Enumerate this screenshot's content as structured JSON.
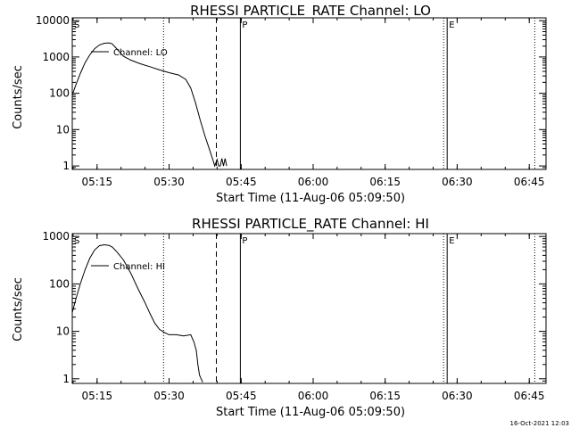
{
  "footer": {
    "timestamp": "16-Oct-2021 12:03"
  },
  "chart_data": [
    {
      "type": "line",
      "title": "RHESSI PARTICLE_RATE Channel: LO",
      "xlabel": "Start Time (11-Aug-06 05:09:50)",
      "ylabel": "Counts/sec",
      "y_scale": "log",
      "xlim": [
        "05:09:50",
        "06:48:30"
      ],
      "ylim": [
        0.8,
        12000
      ],
      "x_ticks": [
        "05:15",
        "05:30",
        "05:45",
        "06:00",
        "06:15",
        "06:30",
        "06:45"
      ],
      "y_ticks": [
        {
          "value": 1,
          "label": "1"
        },
        {
          "value": 10,
          "label": "10"
        },
        {
          "value": 100,
          "label": "100"
        },
        {
          "value": 1000,
          "label": "1000"
        },
        {
          "value": 10000,
          "label": "10000"
        }
      ],
      "legend": {
        "label": "Channel: LO",
        "placement": "top-left"
      },
      "markers": [
        {
          "time": "05:09:50",
          "label": "S",
          "style": "solid"
        },
        {
          "time": "05:28:50",
          "label": "",
          "style": "dotted"
        },
        {
          "time": "05:39:50",
          "label": "",
          "style": "dashed"
        },
        {
          "time": "05:44:50",
          "label": "P",
          "style": "solid"
        },
        {
          "time": "06:27:55",
          "label": "E",
          "style": "solid"
        },
        {
          "time": "06:27:10",
          "label": "",
          "style": "dotted"
        },
        {
          "time": "06:46:10",
          "label": "",
          "style": "dotted"
        }
      ],
      "series": [
        {
          "x": [
            "05:09:50",
            "05:10:30",
            "05:11:30",
            "05:12:30",
            "05:13:30",
            "05:14:30",
            "05:15:30",
            "05:16:30",
            "05:17:30",
            "05:18:10",
            "05:19:10",
            "05:20:30",
            "05:22:00",
            "05:24:00",
            "05:26:00",
            "05:28:00",
            "05:30:00",
            "05:32:00",
            "05:33:30",
            "05:34:30",
            "05:35:30",
            "05:36:30",
            "05:37:30",
            "05:38:30",
            "05:39:10",
            "05:39:30",
            "05:40:00",
            "05:40:20",
            "05:40:40",
            "05:41:00",
            "05:41:20",
            "05:41:40",
            "05:42:00"
          ],
          "y": [
            90,
            160,
            350,
            700,
            1150,
            1700,
            2150,
            2400,
            2450,
            2300,
            1650,
            1050,
            820,
            650,
            540,
            440,
            370,
            320,
            240,
            140,
            55,
            18,
            6.5,
            2.6,
            1.4,
            1.0,
            1.5,
            1.0,
            1.0,
            1.6,
            1.0,
            1.6,
            1.0
          ]
        }
      ]
    },
    {
      "type": "line",
      "title": "RHESSI PARTICLE_RATE Channel: HI",
      "xlabel": "Start Time (11-Aug-06 05:09:50)",
      "ylabel": "Counts/sec",
      "y_scale": "log",
      "xlim": [
        "05:09:50",
        "06:48:30"
      ],
      "ylim": [
        0.8,
        1150
      ],
      "x_ticks": [
        "05:15",
        "05:30",
        "05:45",
        "06:00",
        "06:15",
        "06:30",
        "06:45"
      ],
      "y_ticks": [
        {
          "value": 1,
          "label": "1"
        },
        {
          "value": 10,
          "label": "10"
        },
        {
          "value": 100,
          "label": "100"
        },
        {
          "value": 1000,
          "label": "1000"
        }
      ],
      "legend": {
        "label": "Channel: HI",
        "placement": "top-left"
      },
      "markers": [
        {
          "time": "05:09:50",
          "label": "S",
          "style": "solid"
        },
        {
          "time": "05:28:50",
          "label": "",
          "style": "dotted"
        },
        {
          "time": "05:39:50",
          "label": "",
          "style": "dashed"
        },
        {
          "time": "05:44:50",
          "label": "P",
          "style": "solid"
        },
        {
          "time": "06:27:55",
          "label": "E",
          "style": "solid"
        },
        {
          "time": "06:27:10",
          "label": "",
          "style": "dotted"
        },
        {
          "time": "06:46:10",
          "label": "",
          "style": "dotted"
        }
      ],
      "series": [
        {
          "x": [
            "05:09:50",
            "05:10:30",
            "05:11:30",
            "05:12:30",
            "05:13:30",
            "05:14:30",
            "05:15:30",
            "05:16:30",
            "05:17:30",
            "05:18:10",
            "05:19:10",
            "05:20:30",
            "05:22:00",
            "05:23:30",
            "05:25:00",
            "05:26:00",
            "05:27:00",
            "05:28:00",
            "05:29:00",
            "05:30:00",
            "05:31:30",
            "05:33:00",
            "05:34:30",
            "05:35:10",
            "05:35:40",
            "05:36:00",
            "05:36:20",
            "05:36:40",
            "05:37:00"
          ],
          "y": [
            25,
            45,
            100,
            200,
            350,
            520,
            640,
            670,
            650,
            600,
            470,
            320,
            170,
            80,
            40,
            24,
            15,
            11,
            9.5,
            8.5,
            8.5,
            8.0,
            8.5,
            6.0,
            4.0,
            2.0,
            1.2,
            1.0,
            0.85
          ]
        }
      ]
    }
  ]
}
